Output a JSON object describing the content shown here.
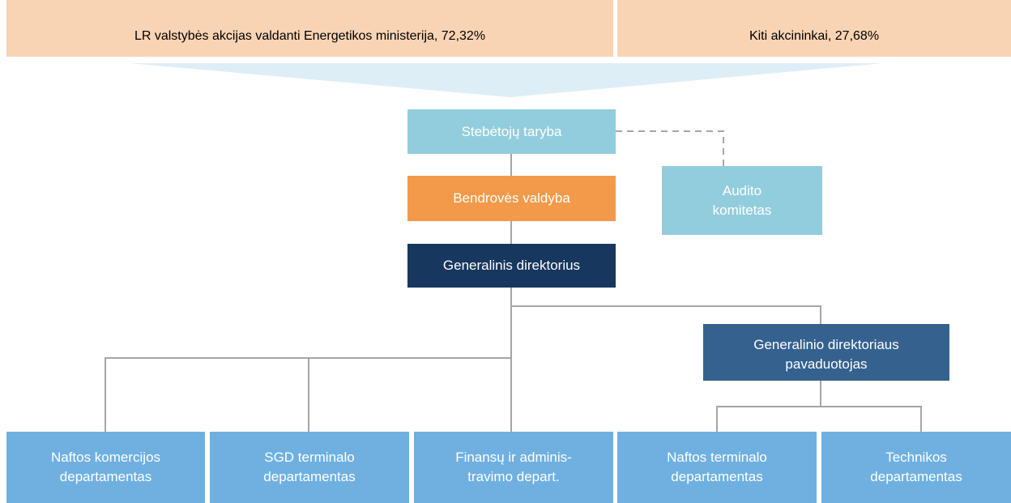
{
  "shareholders": {
    "left": "LR valstybės akcijas valdanti Energetikos ministerija, 72,32%",
    "right": "Kiti akcininkai, 27,68%"
  },
  "nodes": [
    {
      "lines": [
        "Stebėtojų taryba"
      ]
    },
    {
      "lines": [
        "Bendrovės valdyba"
      ]
    },
    {
      "lines": [
        "Generalinis direktorius"
      ]
    },
    {
      "lines": [
        "Audito",
        "komitetas"
      ]
    },
    {
      "lines": [
        "Generalinio direktoriaus",
        "pavaduotojas"
      ]
    },
    {
      "lines": [
        "Naftos komercijos",
        "departamentas"
      ]
    },
    {
      "lines": [
        "SGD terminalo",
        "departamentas"
      ]
    },
    {
      "lines": [
        "Finansų ir adminis-",
        "travimo depart."
      ]
    },
    {
      "lines": [
        "Naftos terminalo",
        "departamentas"
      ]
    },
    {
      "lines": [
        "Technikos",
        "departamentas"
      ]
    }
  ]
}
